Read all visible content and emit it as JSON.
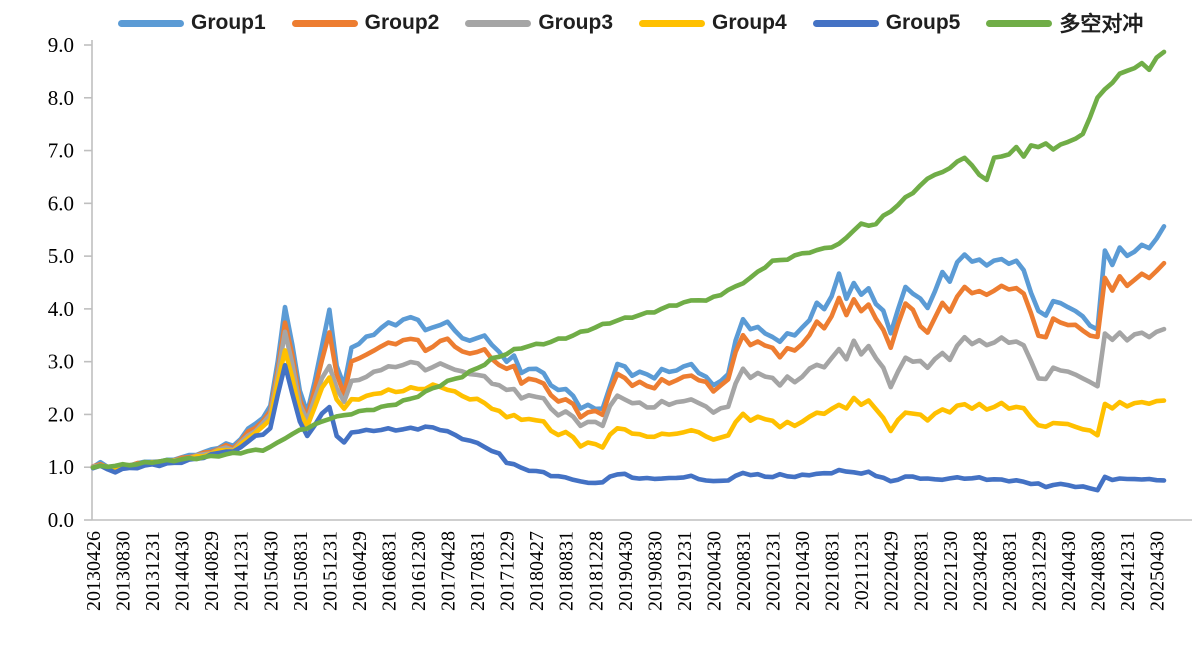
{
  "chart_data": {
    "type": "line",
    "title": "",
    "xlabel": "",
    "ylabel": "",
    "ylim": [
      0,
      9
    ],
    "y_tick_labels": [
      "9.0",
      "8.0",
      "7.0",
      "6.0",
      "5.0",
      "4.0",
      "3.0",
      "2.0",
      "1.0",
      "0.0"
    ],
    "grid": false,
    "legend_position": "top",
    "x_start_month": "2013-04",
    "x_points_monthly": 146,
    "points_per_label": 4,
    "categories": [
      "20130426",
      "20130830",
      "20131231",
      "20140430",
      "20140829",
      "20141231",
      "20150430",
      "20150831",
      "20151231",
      "20160429",
      "20160831",
      "20161230",
      "20170428",
      "20170831",
      "20171229",
      "20180427",
      "20180831",
      "20181228",
      "20190430",
      "20190830",
      "20191231",
      "20200430",
      "20200831",
      "20201231",
      "20210430",
      "20210831",
      "20211231",
      "20220429",
      "20220831",
      "20221230",
      "20230428",
      "20230831",
      "20231229",
      "20240430",
      "20240830",
      "20241231",
      "20250430"
    ],
    "series": [
      {
        "name": "Group1",
        "color": "#5B9BD5",
        "values": [
          1.0,
          1.08,
          1.02,
          0.99,
          1.03,
          1.05,
          1.07,
          1.09,
          1.12,
          1.1,
          1.13,
          1.16,
          1.18,
          1.22,
          1.25,
          1.28,
          1.33,
          1.38,
          1.44,
          1.4,
          1.55,
          1.72,
          1.82,
          1.95,
          2.15,
          3.0,
          4.05,
          3.3,
          2.45,
          2.05,
          2.6,
          3.3,
          4.0,
          2.9,
          2.55,
          3.28,
          3.32,
          3.48,
          3.52,
          3.62,
          3.75,
          3.7,
          3.78,
          3.85,
          3.8,
          3.58,
          3.66,
          3.7,
          3.74,
          3.6,
          3.45,
          3.38,
          3.46,
          3.5,
          3.3,
          3.2,
          3.0,
          3.1,
          2.8,
          2.86,
          2.85,
          2.8,
          2.55,
          2.45,
          2.5,
          2.35,
          2.1,
          2.2,
          2.1,
          2.1,
          2.55,
          2.95,
          2.9,
          2.75,
          2.8,
          2.75,
          2.7,
          2.85,
          2.8,
          2.85,
          2.9,
          2.95,
          2.8,
          2.7,
          2.55,
          2.65,
          2.75,
          3.4,
          3.82,
          3.6,
          3.66,
          3.55,
          3.45,
          3.38,
          3.55,
          3.48,
          3.65,
          3.8,
          4.1,
          4.0,
          4.25,
          4.65,
          4.2,
          4.5,
          4.25,
          4.4,
          4.1,
          3.95,
          3.55,
          4.0,
          4.4,
          4.3,
          4.2,
          4.0,
          4.35,
          4.7,
          4.5,
          4.9,
          5.03,
          4.88,
          4.95,
          4.82,
          4.9,
          4.96,
          4.85,
          4.9,
          4.75,
          4.3,
          3.95,
          3.89,
          4.14,
          4.1,
          4.05,
          3.95,
          3.85,
          3.7,
          3.6,
          5.1,
          4.85,
          5.15,
          5.0,
          5.1,
          5.2,
          5.15,
          5.35,
          5.55
        ]
      },
      {
        "name": "Group2",
        "color": "#ED7D31",
        "values": [
          1.0,
          1.06,
          1.01,
          0.98,
          1.02,
          1.04,
          1.06,
          1.08,
          1.1,
          1.09,
          1.12,
          1.14,
          1.16,
          1.2,
          1.23,
          1.26,
          1.3,
          1.35,
          1.4,
          1.37,
          1.5,
          1.66,
          1.76,
          1.88,
          2.05,
          2.85,
          3.74,
          3.1,
          2.3,
          1.95,
          2.45,
          3.05,
          3.55,
          2.75,
          2.4,
          3.0,
          3.05,
          3.15,
          3.2,
          3.28,
          3.38,
          3.32,
          3.4,
          3.45,
          3.4,
          3.2,
          3.3,
          3.38,
          3.43,
          3.3,
          3.18,
          3.15,
          3.2,
          3.22,
          3.05,
          2.95,
          2.85,
          2.92,
          2.6,
          2.66,
          2.65,
          2.6,
          2.35,
          2.25,
          2.3,
          2.18,
          1.95,
          2.05,
          2.05,
          2.0,
          2.45,
          2.75,
          2.7,
          2.55,
          2.6,
          2.55,
          2.5,
          2.65,
          2.6,
          2.65,
          2.7,
          2.75,
          2.65,
          2.6,
          2.45,
          2.55,
          2.65,
          3.2,
          3.5,
          3.3,
          3.4,
          3.3,
          3.25,
          3.1,
          3.25,
          3.2,
          3.35,
          3.5,
          3.75,
          3.65,
          3.85,
          4.2,
          3.9,
          4.17,
          3.95,
          4.1,
          3.8,
          3.6,
          3.28,
          3.7,
          4.1,
          4.0,
          3.66,
          3.55,
          3.85,
          4.1,
          3.95,
          4.25,
          4.4,
          4.3,
          4.35,
          4.25,
          4.35,
          4.45,
          4.35,
          4.4,
          4.3,
          3.9,
          3.5,
          3.47,
          3.8,
          3.75,
          3.7,
          3.68,
          3.6,
          3.5,
          3.45,
          4.6,
          4.35,
          4.6,
          4.45,
          4.55,
          4.65,
          4.6,
          4.72,
          4.85
        ]
      },
      {
        "name": "Group3",
        "color": "#A5A5A5",
        "values": [
          1.0,
          1.05,
          1.0,
          0.97,
          1.01,
          1.03,
          1.05,
          1.07,
          1.09,
          1.08,
          1.1,
          1.12,
          1.14,
          1.18,
          1.21,
          1.24,
          1.28,
          1.32,
          1.37,
          1.34,
          1.46,
          1.6,
          1.7,
          1.82,
          2.0,
          2.75,
          3.55,
          2.95,
          2.2,
          1.88,
          2.3,
          2.7,
          2.9,
          2.5,
          2.25,
          2.62,
          2.66,
          2.72,
          2.79,
          2.85,
          2.92,
          2.88,
          2.95,
          3.0,
          2.95,
          2.85,
          2.9,
          2.95,
          2.92,
          2.85,
          2.8,
          2.78,
          2.75,
          2.71,
          2.6,
          2.55,
          2.45,
          2.5,
          2.3,
          2.35,
          2.35,
          2.3,
          2.1,
          2.0,
          2.05,
          1.95,
          1.8,
          1.85,
          1.85,
          1.8,
          2.15,
          2.35,
          2.3,
          2.2,
          2.22,
          2.15,
          2.12,
          2.25,
          2.2,
          2.22,
          2.25,
          2.3,
          2.2,
          2.15,
          2.05,
          2.1,
          2.15,
          2.6,
          2.85,
          2.7,
          2.8,
          2.7,
          2.7,
          2.56,
          2.7,
          2.62,
          2.72,
          2.85,
          2.95,
          2.9,
          3.05,
          3.25,
          3.05,
          3.38,
          3.15,
          3.3,
          3.05,
          2.9,
          2.52,
          2.8,
          3.09,
          3.0,
          3.0,
          2.9,
          3.05,
          3.15,
          3.05,
          3.3,
          3.45,
          3.35,
          3.4,
          3.3,
          3.38,
          3.45,
          3.35,
          3.4,
          3.3,
          3.0,
          2.7,
          2.66,
          2.88,
          2.85,
          2.8,
          2.75,
          2.7,
          2.6,
          2.53,
          3.55,
          3.4,
          3.55,
          3.42,
          3.5,
          3.55,
          3.48,
          3.55,
          3.62
        ]
      },
      {
        "name": "Group4",
        "color": "#FFC000",
        "values": [
          1.0,
          1.04,
          0.99,
          0.97,
          1.0,
          1.02,
          1.04,
          1.06,
          1.08,
          1.07,
          1.09,
          1.11,
          1.13,
          1.16,
          1.19,
          1.22,
          1.26,
          1.3,
          1.34,
          1.31,
          1.42,
          1.56,
          1.65,
          1.76,
          1.92,
          2.6,
          3.2,
          2.7,
          2.05,
          1.76,
          2.15,
          2.5,
          2.69,
          2.3,
          2.1,
          2.28,
          2.3,
          2.34,
          2.38,
          2.42,
          2.46,
          2.42,
          2.46,
          2.5,
          2.48,
          2.5,
          2.55,
          2.52,
          2.48,
          2.42,
          2.35,
          2.3,
          2.28,
          2.22,
          2.12,
          2.05,
          1.95,
          2.0,
          1.88,
          1.92,
          1.9,
          1.85,
          1.7,
          1.62,
          1.65,
          1.58,
          1.4,
          1.45,
          1.45,
          1.38,
          1.6,
          1.75,
          1.72,
          1.62,
          1.64,
          1.58,
          1.56,
          1.65,
          1.62,
          1.62,
          1.68,
          1.7,
          1.65,
          1.6,
          1.52,
          1.55,
          1.62,
          1.85,
          2.0,
          1.9,
          1.95,
          1.9,
          1.9,
          1.75,
          1.85,
          1.8,
          1.85,
          1.95,
          2.05,
          2.0,
          2.1,
          2.2,
          2.1,
          2.31,
          2.2,
          2.25,
          2.1,
          1.95,
          1.67,
          1.9,
          2.05,
          2.0,
          2.0,
          1.9,
          2.0,
          2.1,
          2.05,
          2.15,
          2.2,
          2.12,
          2.18,
          2.1,
          2.15,
          2.2,
          2.12,
          2.15,
          2.1,
          1.95,
          1.8,
          1.75,
          1.85,
          1.83,
          1.8,
          1.78,
          1.72,
          1.68,
          1.62,
          2.2,
          2.1,
          2.25,
          2.15,
          2.2,
          2.25,
          2.2,
          2.24,
          2.28
        ]
      },
      {
        "name": "Group5",
        "color": "#4472C4",
        "values": [
          1.0,
          1.02,
          0.95,
          0.92,
          0.96,
          0.98,
          1.0,
          1.02,
          1.05,
          1.04,
          1.06,
          1.08,
          1.1,
          1.13,
          1.16,
          1.19,
          1.23,
          1.27,
          1.31,
          1.28,
          1.38,
          1.5,
          1.58,
          1.62,
          1.75,
          2.35,
          2.94,
          2.4,
          1.85,
          1.6,
          1.8,
          2.0,
          2.15,
          1.6,
          1.45,
          1.67,
          1.68,
          1.69,
          1.7,
          1.71,
          1.72,
          1.71,
          1.72,
          1.73,
          1.73,
          1.77,
          1.74,
          1.72,
          1.68,
          1.6,
          1.55,
          1.5,
          1.45,
          1.4,
          1.3,
          1.25,
          1.1,
          1.05,
          0.98,
          0.95,
          0.92,
          0.9,
          0.85,
          0.82,
          0.8,
          0.78,
          0.72,
          0.7,
          0.72,
          0.7,
          0.82,
          0.88,
          0.86,
          0.8,
          0.8,
          0.78,
          0.78,
          0.8,
          0.78,
          0.8,
          0.82,
          0.82,
          0.78,
          0.76,
          0.72,
          0.75,
          0.76,
          0.82,
          0.9,
          0.86,
          0.85,
          0.83,
          0.82,
          0.85,
          0.84,
          0.82,
          0.84,
          0.86,
          0.88,
          0.87,
          0.9,
          0.95,
          0.9,
          0.92,
          0.88,
          0.9,
          0.85,
          0.8,
          0.72,
          0.78,
          0.82,
          0.81,
          0.8,
          0.78,
          0.76,
          0.78,
          0.78,
          0.8,
          0.8,
          0.78,
          0.8,
          0.78,
          0.76,
          0.76,
          0.75,
          0.74,
          0.72,
          0.7,
          0.68,
          0.62,
          0.68,
          0.67,
          0.66,
          0.64,
          0.62,
          0.6,
          0.58,
          0.8,
          0.76,
          0.8,
          0.76,
          0.78,
          0.78,
          0.76,
          0.76,
          0.76
        ]
      },
      {
        "name": "多空对冲",
        "color": "#70AD47",
        "values": [
          1.0,
          1.01,
          1.02,
          1.03,
          1.04,
          1.05,
          1.06,
          1.08,
          1.1,
          1.11,
          1.12,
          1.13,
          1.15,
          1.16,
          1.17,
          1.19,
          1.2,
          1.22,
          1.24,
          1.26,
          1.28,
          1.3,
          1.32,
          1.33,
          1.38,
          1.46,
          1.56,
          1.62,
          1.7,
          1.75,
          1.8,
          1.86,
          1.93,
          1.95,
          1.98,
          2.02,
          2.05,
          2.08,
          2.1,
          2.13,
          2.17,
          2.2,
          2.25,
          2.3,
          2.35,
          2.42,
          2.5,
          2.55,
          2.62,
          2.68,
          2.72,
          2.8,
          2.88,
          2.95,
          3.05,
          3.1,
          3.15,
          3.22,
          3.26,
          3.3,
          3.32,
          3.34,
          3.38,
          3.42,
          3.45,
          3.5,
          3.55,
          3.6,
          3.65,
          3.7,
          3.74,
          3.78,
          3.82,
          3.85,
          3.88,
          3.92,
          3.95,
          4.0,
          4.05,
          4.08,
          4.12,
          4.15,
          4.18,
          4.15,
          4.22,
          4.28,
          4.35,
          4.42,
          4.5,
          4.58,
          4.7,
          4.8,
          4.9,
          4.92,
          4.95,
          5.0,
          5.05,
          5.08,
          5.1,
          5.15,
          5.18,
          5.22,
          5.35,
          5.5,
          5.6,
          5.58,
          5.62,
          5.75,
          5.85,
          5.98,
          6.1,
          6.2,
          6.35,
          6.45,
          6.55,
          6.6,
          6.65,
          6.8,
          6.87,
          6.7,
          6.55,
          6.45,
          6.85,
          6.9,
          6.93,
          7.05,
          6.9,
          7.1,
          7.05,
          7.15,
          7.02,
          7.1,
          7.18,
          7.22,
          7.3,
          7.65,
          8.0,
          8.15,
          8.3,
          8.45,
          8.5,
          8.58,
          8.65,
          8.52,
          8.78,
          8.86
        ]
      }
    ]
  },
  "colors": {
    "axis_line": "#BFBFBF",
    "tick": "#BFBFBF",
    "text": "#000000",
    "legend_text": "#1f1f1f"
  }
}
